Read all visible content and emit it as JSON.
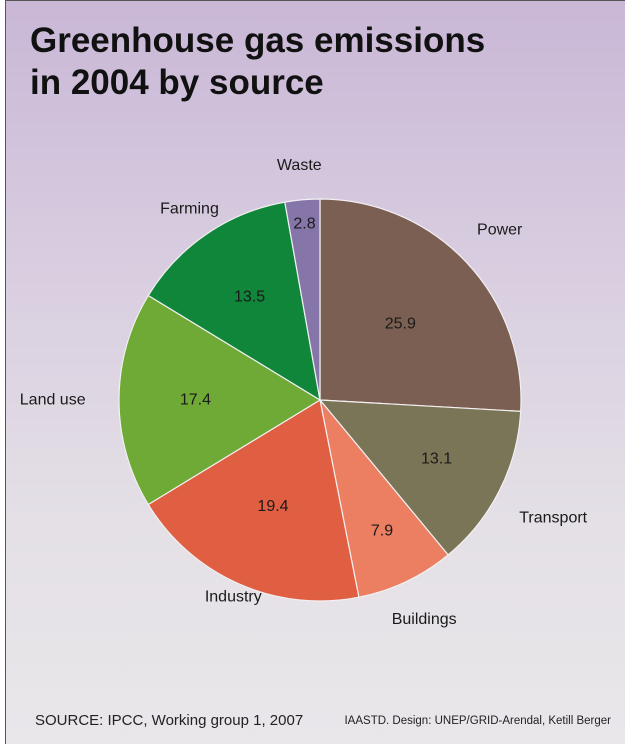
{
  "title_lines": [
    "Greenhouse gas emissions",
    "in 2004 by source"
  ],
  "source": "SOURCE: IPCC, Working group 1, 2007",
  "credit": "IAASTD. Design: UNEP/GRID-Arendal, Ketill Berger",
  "chart_data": {
    "type": "pie",
    "title": "Greenhouse gas emissions in 2004 by source",
    "slices": [
      {
        "label": "Power",
        "value": 25.9,
        "value_label": "25.9",
        "color": "#7b5f52"
      },
      {
        "label": "Transport",
        "value": 13.1,
        "value_label": "13.1",
        "color": "#7a7557"
      },
      {
        "label": "Buildings",
        "value": 7.9,
        "value_label": "7.9",
        "color": "#ec7e62"
      },
      {
        "label": "Industry",
        "value": 19.4,
        "value_label": "19.4",
        "color": "#e05f42"
      },
      {
        "label": "Land use",
        "value": 17.4,
        "value_label": "17.4",
        "color": "#6faa36"
      },
      {
        "label": "Farming",
        "value": 13.5,
        "value_label": "13.5",
        "color": "#10863a"
      },
      {
        "label": "Waste",
        "value": 2.8,
        "value_label": "2.8",
        "color": "#8675a8"
      }
    ]
  }
}
